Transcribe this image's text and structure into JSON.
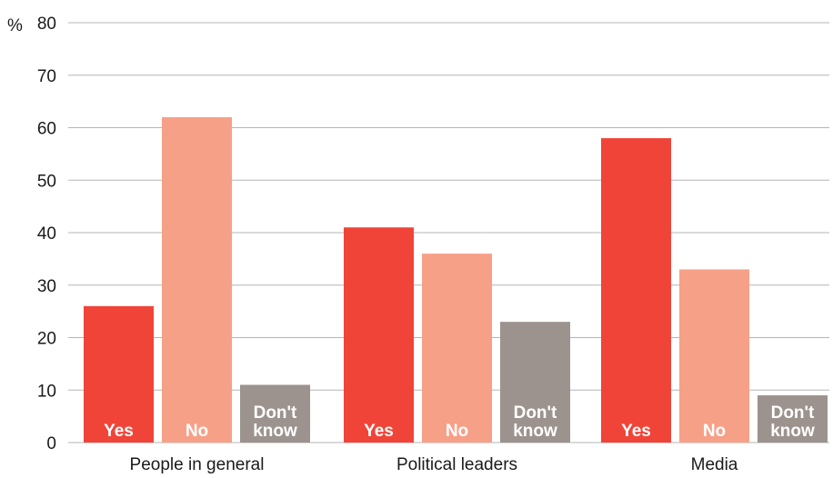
{
  "chart_data": {
    "type": "bar",
    "unit_label": "%",
    "categories": [
      "People in general",
      "Political leaders",
      "Media"
    ],
    "series": [
      {
        "name": "Yes",
        "label_lines": [
          "Yes"
        ],
        "color": "#f04438",
        "values": [
          26,
          41,
          58
        ]
      },
      {
        "name": "No",
        "label_lines": [
          "No"
        ],
        "color": "#f7a088",
        "values": [
          62,
          36,
          33
        ]
      },
      {
        "name": "Don't know",
        "label_lines": [
          "Don't",
          "know"
        ],
        "color": "#9c938e",
        "values": [
          11,
          23,
          9
        ]
      }
    ],
    "ylim": [
      0,
      80
    ],
    "yticks": [
      0,
      10,
      20,
      30,
      40,
      50,
      60,
      70,
      80
    ],
    "grid": true,
    "gridline_color": "#b5b5b5",
    "legend": "none"
  }
}
